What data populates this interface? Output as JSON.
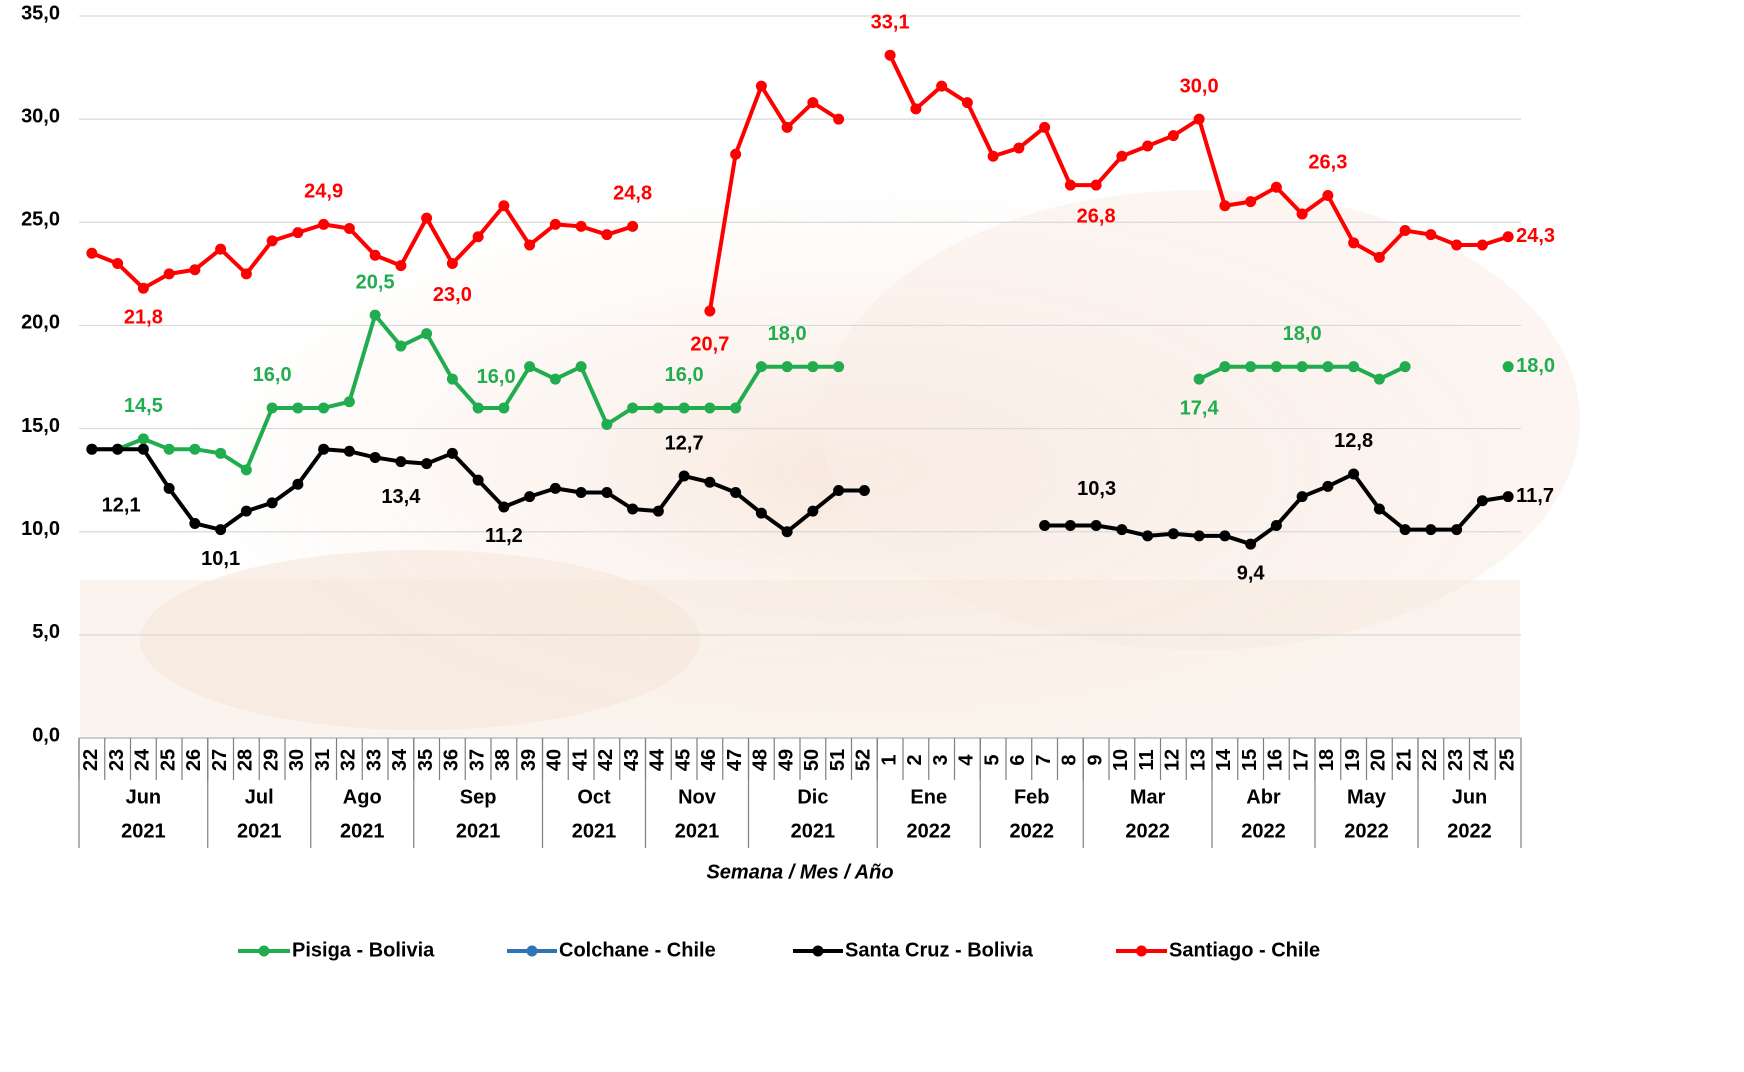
{
  "chart_data": {
    "type": "line",
    "x_title": "Semana / Mes / Año",
    "categories": [
      "22",
      "23",
      "24",
      "25",
      "26",
      "27",
      "28",
      "29",
      "30",
      "31",
      "32",
      "33",
      "34",
      "35",
      "36",
      "37",
      "38",
      "39",
      "40",
      "41",
      "42",
      "43",
      "44",
      "45",
      "46",
      "47",
      "48",
      "49",
      "50",
      "51",
      "52",
      "1",
      "2",
      "3",
      "4",
      "5",
      "6",
      "7",
      "8",
      "9",
      "10",
      "11",
      "12",
      "13",
      "14",
      "15",
      "16",
      "17",
      "18",
      "19",
      "20",
      "21",
      "22",
      "23",
      "24",
      "25"
    ],
    "groups": [
      {
        "month": "Jun",
        "year": "2021",
        "span": 5
      },
      {
        "month": "Jul",
        "year": "2021",
        "span": 4
      },
      {
        "month": "Ago",
        "year": "2021",
        "span": 4
      },
      {
        "month": "Sep",
        "year": "2021",
        "span": 5
      },
      {
        "month": "Oct",
        "year": "2021",
        "span": 4
      },
      {
        "month": "Nov",
        "year": "2021",
        "span": 4
      },
      {
        "month": "Dic",
        "year": "2021",
        "span": 5
      },
      {
        "month": "Ene",
        "year": "2022",
        "span": 4
      },
      {
        "month": "Feb",
        "year": "2022",
        "span": 4
      },
      {
        "month": "Mar",
        "year": "2022",
        "span": 5
      },
      {
        "month": "Abr",
        "year": "2022",
        "span": 4
      },
      {
        "month": "May",
        "year": "2022",
        "span": 4
      },
      {
        "month": "Jun",
        "year": "2022",
        "span": 4
      }
    ],
    "ylim": [
      0,
      35
    ],
    "yticks": [
      {
        "value": 0,
        "label": "0,0"
      },
      {
        "value": 5,
        "label": "5,0"
      },
      {
        "value": 10,
        "label": "10,0"
      },
      {
        "value": 15,
        "label": "15,0"
      },
      {
        "value": 20,
        "label": "20,0"
      },
      {
        "value": 25,
        "label": "25,0"
      },
      {
        "value": 30,
        "label": "30,0"
      },
      {
        "value": 35,
        "label": "35,0"
      }
    ],
    "grid": true,
    "legend": "bottom",
    "series": [
      {
        "name": "Pisiga - Bolivia",
        "color": "#21ad4f",
        "values": [
          14.0,
          14.0,
          14.5,
          14.0,
          14.0,
          13.8,
          13.0,
          16.0,
          16.0,
          16.0,
          16.3,
          20.5,
          19.0,
          19.6,
          17.4,
          16.0,
          16.0,
          18.0,
          17.4,
          18.0,
          15.2,
          16.0,
          16.0,
          16.0,
          16.0,
          16.0,
          18.0,
          18.0,
          18.0,
          18.0,
          null,
          null,
          null,
          null,
          null,
          null,
          null,
          null,
          null,
          null,
          null,
          null,
          null,
          17.4,
          18.0,
          18.0,
          18.0,
          18.0,
          18.0,
          18.0,
          17.4,
          18.0,
          null,
          null,
          null,
          18.0
        ],
        "value_labels": [
          null,
          null,
          "14,5",
          null,
          null,
          null,
          null,
          "16,0",
          null,
          null,
          null,
          "20,5",
          null,
          null,
          null,
          "16,0",
          null,
          null,
          null,
          null,
          null,
          null,
          null,
          "16,0",
          null,
          null,
          null,
          "18,0",
          null,
          null,
          null,
          null,
          null,
          null,
          null,
          null,
          null,
          null,
          null,
          null,
          null,
          null,
          null,
          "17,4",
          null,
          null,
          null,
          "18,0",
          null,
          null,
          null,
          null,
          null,
          null,
          null,
          "18,0"
        ]
      },
      {
        "name": "Colchane - Chile",
        "color": "#2e75b6",
        "values": [
          null,
          null,
          null,
          null,
          null,
          null,
          null,
          null,
          null,
          null,
          null,
          null,
          null,
          null,
          null,
          null,
          null,
          null,
          null,
          null,
          null,
          null,
          null,
          null,
          null,
          null,
          null,
          null,
          null,
          null,
          null,
          null,
          null,
          null,
          null,
          null,
          null,
          null,
          null,
          null,
          null,
          null,
          null,
          null,
          null,
          null,
          null,
          null,
          null,
          null,
          null,
          null,
          null,
          null,
          null,
          null
        ]
      },
      {
        "name": "Santa Cruz - Bolivia",
        "color": "#000000",
        "values": [
          14.0,
          14.0,
          14.0,
          12.1,
          10.4,
          10.1,
          11.0,
          11.4,
          12.3,
          14.0,
          13.9,
          13.6,
          13.4,
          13.3,
          13.8,
          12.5,
          11.2,
          11.7,
          12.1,
          11.9,
          11.9,
          11.1,
          11.0,
          12.7,
          12.4,
          11.9,
          10.9,
          10.0,
          11.0,
          12.0,
          12.0,
          null,
          null,
          null,
          null,
          null,
          null,
          10.3,
          10.3,
          10.3,
          10.1,
          9.8,
          9.9,
          9.8,
          9.8,
          9.4,
          10.3,
          11.7,
          12.2,
          12.8,
          11.1,
          10.1,
          10.1,
          10.1,
          11.5,
          11.7
        ],
        "value_labels": [
          null,
          null,
          null,
          "12,1",
          null,
          "10,1",
          null,
          null,
          null,
          null,
          null,
          null,
          "13,4",
          null,
          null,
          null,
          "11,2",
          null,
          null,
          null,
          null,
          null,
          null,
          "12,7",
          null,
          null,
          null,
          null,
          null,
          null,
          null,
          null,
          null,
          null,
          null,
          null,
          null,
          "10,3",
          null,
          null,
          null,
          null,
          null,
          null,
          null,
          "9,4",
          null,
          null,
          null,
          "12,8",
          null,
          null,
          null,
          null,
          null,
          "11,7"
        ]
      },
      {
        "name": "Santiago - Chile",
        "color": "#ff0000",
        "values": [
          23.5,
          23.0,
          21.8,
          22.5,
          22.7,
          23.7,
          22.5,
          24.1,
          24.5,
          24.9,
          24.7,
          23.4,
          22.9,
          25.2,
          23.0,
          24.3,
          25.8,
          23.9,
          24.9,
          24.8,
          24.4,
          24.8,
          null,
          null,
          20.7,
          28.3,
          31.6,
          29.6,
          30.8,
          30.0,
          null,
          33.1,
          30.5,
          31.6,
          30.8,
          28.2,
          28.6,
          29.6,
          26.8,
          26.8,
          28.2,
          28.7,
          29.2,
          30.0,
          25.8,
          26.0,
          26.7,
          25.4,
          26.3,
          24.0,
          23.3,
          24.6,
          24.4,
          23.9,
          23.9,
          24.3
        ],
        "value_labels": [
          null,
          null,
          "21,8",
          null,
          null,
          null,
          null,
          null,
          null,
          "24,9",
          null,
          null,
          null,
          null,
          "23,0",
          null,
          null,
          null,
          null,
          null,
          null,
          "24,8",
          null,
          null,
          "20,7",
          null,
          null,
          null,
          null,
          null,
          null,
          "33,1",
          null,
          null,
          null,
          null,
          null,
          null,
          null,
          "26,8",
          null,
          null,
          null,
          "30,0",
          null,
          null,
          null,
          null,
          "26,3",
          null,
          null,
          null,
          null,
          null,
          null,
          "24,3"
        ]
      }
    ]
  }
}
